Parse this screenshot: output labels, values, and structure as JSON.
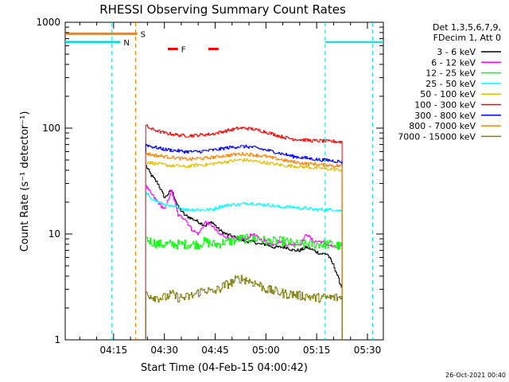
{
  "chart_data": {
    "type": "line",
    "title": "RHESSI Observing Summary Count Rates",
    "xlabel": "Start Time (04-Feb-15 04:00:42)",
    "ylabel": "Count Rate (s⁻¹ detector⁻¹)",
    "yscale": "log",
    "ylim": [
      1,
      1000
    ],
    "xlim_minutes": [
      0.7,
      94.7
    ],
    "x_ticks": [
      {
        "label": "04:15",
        "minute": 15
      },
      {
        "label": "04:30",
        "minute": 30
      },
      {
        "label": "04:45",
        "minute": 45
      },
      {
        "label": "05:00",
        "minute": 60
      },
      {
        "label": "05:15",
        "minute": 75
      },
      {
        "label": "05:30",
        "minute": 90
      }
    ],
    "y_ticks": [
      {
        "label": "1",
        "value": 1
      },
      {
        "label": "10",
        "value": 10
      },
      {
        "label": "100",
        "value": 100
      },
      {
        "label": "1000",
        "value": 1000
      }
    ],
    "legend_header": [
      "Det 1,3,5,6,7,9,",
      "FDecim 1, Att 0"
    ],
    "legend_position": "right",
    "timestamp": "26-Oct-2021 00:40",
    "data_start_minute": 24.5,
    "data_end_minute": 82.5,
    "x_minutes": [
      24.5,
      26,
      28,
      30,
      32,
      34,
      36,
      38,
      40,
      42,
      44,
      46,
      48,
      50,
      52,
      54,
      56,
      58,
      60,
      62,
      64,
      66,
      68,
      70,
      72,
      74,
      76,
      78,
      80,
      82.5
    ],
    "series": [
      {
        "name": "3 - 6 keV",
        "color": "#000000",
        "values": [
          44,
          36,
          30,
          22,
          26,
          18,
          15,
          14,
          13,
          12,
          13,
          11,
          10,
          9.5,
          9,
          8.5,
          8.5,
          8,
          8,
          7.5,
          7.5,
          7.5,
          7,
          7,
          7.5,
          7,
          6.5,
          6.5,
          5,
          3
        ]
      },
      {
        "name": "6 - 12 keV",
        "color": "#ff00ff",
        "values": [
          28,
          24,
          20,
          17,
          26,
          15,
          14,
          11,
          10,
          13,
          12,
          10,
          9.5,
          9,
          9,
          9,
          10,
          9,
          8.5,
          8,
          8.5,
          8,
          8,
          8,
          10,
          8.5,
          8.5,
          8,
          7.5,
          7.5
        ]
      },
      {
        "name": "12 - 25 keV",
        "color": "#00ff00",
        "values": [
          9,
          8.5,
          8,
          8,
          8,
          8,
          8,
          8,
          8,
          8.5,
          8,
          8,
          8.5,
          8.5,
          9,
          9,
          9,
          9,
          8.5,
          8.5,
          8.5,
          8.5,
          8,
          8,
          8,
          8,
          8,
          8,
          8,
          7.5
        ]
      },
      {
        "name": "25 - 50 keV",
        "color": "#00ffff",
        "values": [
          24,
          22,
          20,
          19,
          18,
          18,
          17,
          17,
          17,
          17,
          17,
          18,
          18.5,
          19,
          19,
          19.5,
          19.5,
          19,
          19,
          18.5,
          18,
          18,
          18,
          17.5,
          17.5,
          17,
          17,
          17,
          17,
          16.5
        ]
      },
      {
        "name": "50 - 100 keV",
        "color": "#e0c000",
        "values": [
          48,
          47,
          46,
          45,
          44,
          44,
          43,
          44,
          45,
          45,
          46,
          47,
          48,
          49,
          50,
          50,
          49,
          48,
          47,
          46,
          45,
          44,
          44,
          43,
          43,
          42,
          42,
          41,
          41,
          40
        ]
      },
      {
        "name": "100 - 300 keV",
        "color": "#ff0000",
        "values": [
          105,
          98,
          94,
          90,
          88,
          86,
          85,
          85,
          86,
          87,
          88,
          91,
          94,
          97,
          100,
          100,
          98,
          95,
          92,
          88,
          84,
          81,
          79,
          78,
          77,
          76,
          76,
          75,
          75,
          74
        ]
      },
      {
        "name": "300 - 800 keV",
        "color": "#0000ff",
        "values": [
          70,
          67,
          65,
          63,
          62,
          61,
          60,
          60,
          60,
          61,
          62,
          63,
          65,
          66,
          67,
          67,
          66,
          64,
          62,
          60,
          58,
          56,
          54,
          53,
          52,
          51,
          50,
          50,
          49,
          48
        ]
      },
      {
        "name": "800 - 7000 keV",
        "color": "#ff8000",
        "values": [
          58,
          56,
          55,
          54,
          53,
          52,
          51,
          51,
          52,
          52,
          53,
          54,
          55,
          56,
          57,
          57,
          56,
          55,
          54,
          52,
          51,
          49,
          48,
          47,
          46,
          46,
          45,
          45,
          44,
          44
        ]
      },
      {
        "name": "7000 - 15000 keV",
        "color": "#808000",
        "values": [
          2.8,
          2.6,
          2.5,
          2.5,
          2.7,
          2.5,
          2.5,
          2.6,
          2.8,
          3.0,
          2.8,
          3.0,
          3.3,
          3.5,
          3.8,
          3.7,
          3.5,
          3.3,
          3.0,
          2.9,
          2.8,
          2.7,
          2.7,
          2.6,
          2.6,
          2.5,
          2.5,
          2.5,
          2.5,
          2.5
        ]
      }
    ],
    "orbit_flags": [
      {
        "label": "N",
        "color": "#00e0e0",
        "level": 650,
        "spans": [
          [
            0.7,
            17
          ]
        ]
      },
      {
        "label": "S",
        "color": "#ff8000",
        "level": 780,
        "spans": [
          [
            0.7,
            22
          ]
        ]
      },
      {
        "label": "F",
        "color": "#ff0000",
        "level": 560,
        "spans": [
          [
            31,
            34
          ],
          [
            43,
            46
          ]
        ]
      }
    ],
    "night_boundaries_minutes": [
      14.5,
      77.5,
      91.5
    ],
    "saa_boundary_minutes": [
      21.5
    ],
    "data_gap_level_value": 650
  }
}
